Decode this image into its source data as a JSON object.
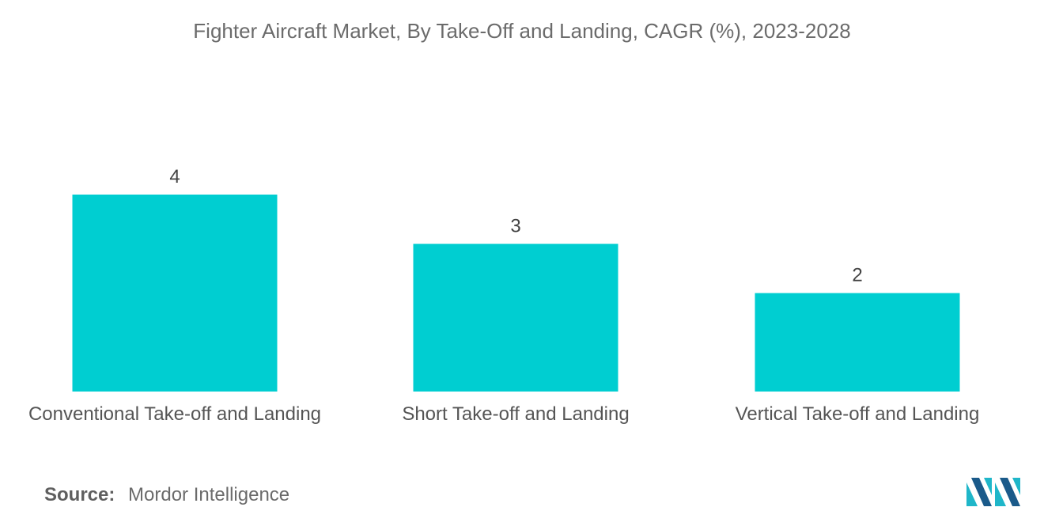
{
  "title": "Fighter Aircraft Market, By Take-Off and Landing, CAGR (%), 2023-2028",
  "source": {
    "label": "Source:",
    "value": "Mordor Intelligence"
  },
  "logo": {
    "icon": "mordor-intelligence-logo-icon",
    "colors": [
      "#1fb6c9",
      "#1a5a8a"
    ]
  },
  "colors": {
    "bar": "#00ced1"
  },
  "chart_data": {
    "type": "bar",
    "title": "Fighter Aircraft Market, By Take-Off and Landing, CAGR (%), 2023-2028",
    "categories": [
      "Conventional Take-off and Landing",
      "Short Take-off and Landing",
      "Vertical Take-off and Landing"
    ],
    "values": [
      4,
      3,
      2
    ],
    "data_labels": [
      "4",
      "3",
      "2"
    ],
    "xlabel": "",
    "ylabel": "",
    "ylim": [
      0,
      4
    ],
    "grid": false,
    "legend": "none"
  }
}
